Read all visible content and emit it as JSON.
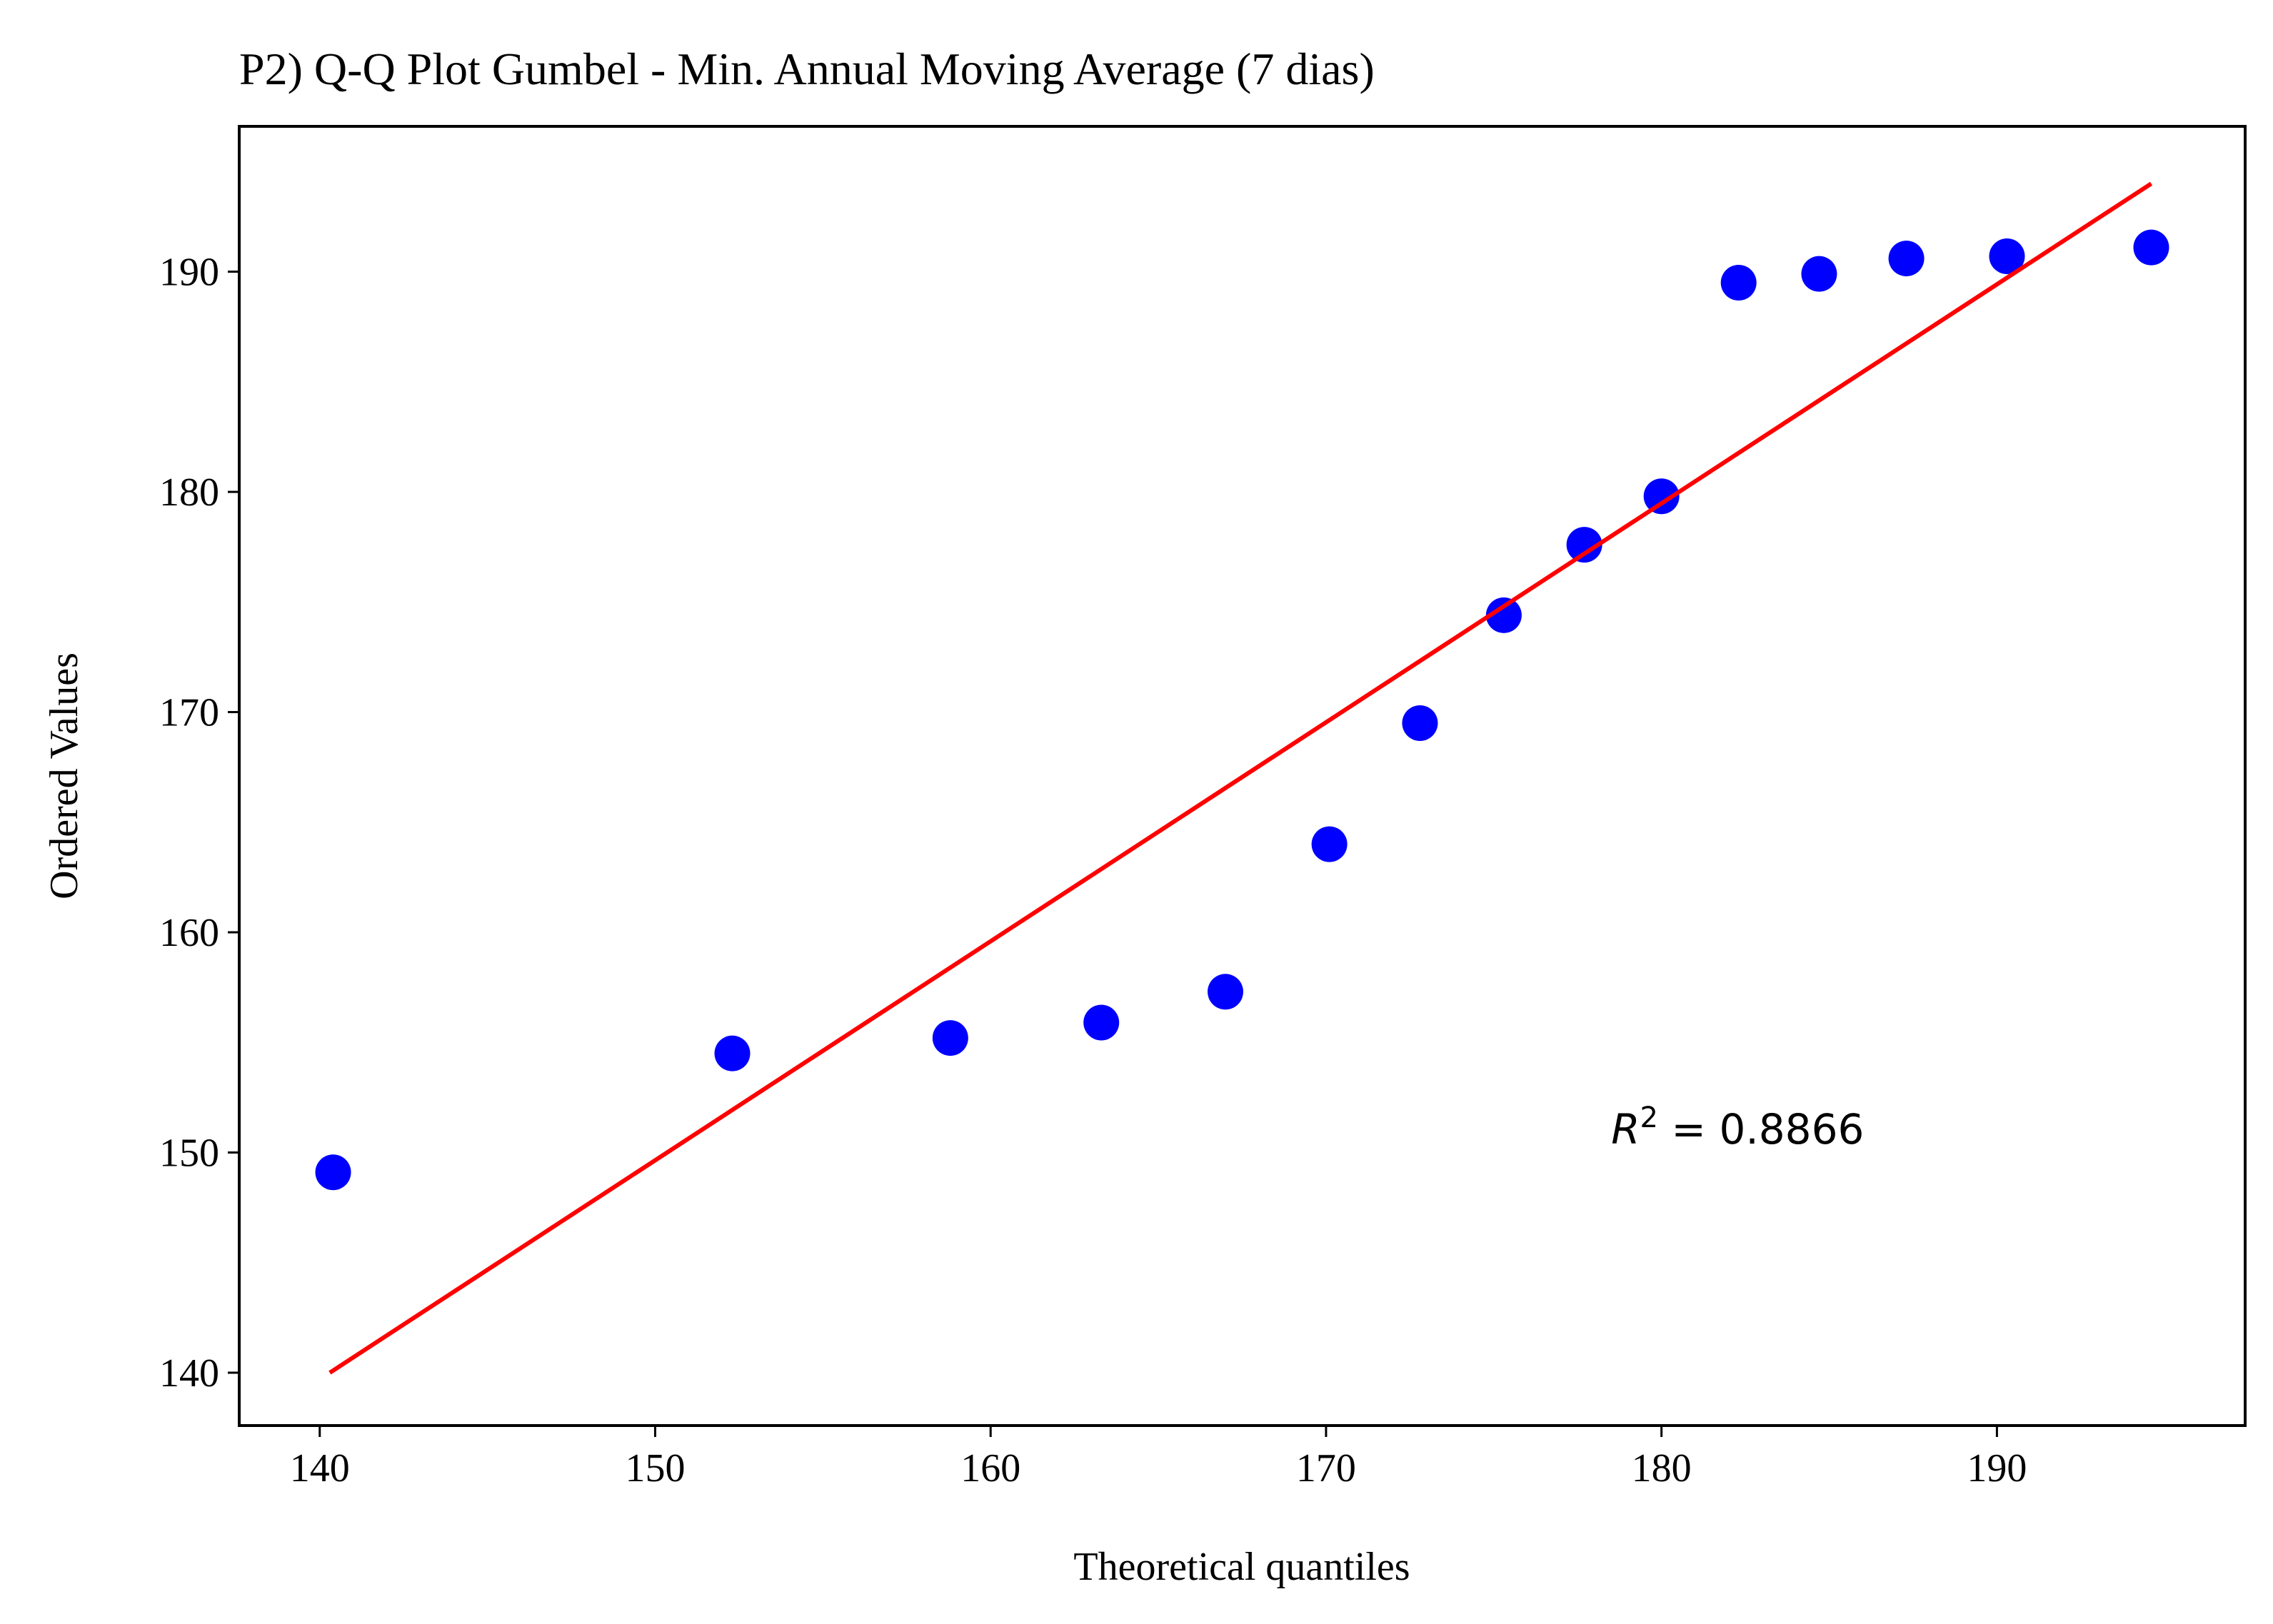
{
  "chart_data": {
    "type": "scatter",
    "title": "P2) Q-Q Plot Gumbel - Min. Annual Moving Average (7 dias)",
    "xlabel": "Theoretical quantiles",
    "ylabel": "Ordered Values",
    "xlim": [
      137.6,
      197.4
    ],
    "ylim": [
      137.6,
      196.6
    ],
    "xticks": [
      140,
      150,
      160,
      170,
      180,
      190
    ],
    "yticks": [
      140,
      150,
      160,
      170,
      180,
      190
    ],
    "grid": false,
    "series": [
      {
        "kind": "scatter",
        "color": "#0000ff",
        "points": [
          {
            "x": 140.4,
            "y": 149.1
          },
          {
            "x": 152.3,
            "y": 154.5
          },
          {
            "x": 158.8,
            "y": 155.2
          },
          {
            "x": 163.3,
            "y": 155.9
          },
          {
            "x": 167.0,
            "y": 157.3
          },
          {
            "x": 170.1,
            "y": 164.0
          },
          {
            "x": 172.8,
            "y": 169.5
          },
          {
            "x": 175.3,
            "y": 174.4
          },
          {
            "x": 177.7,
            "y": 177.6
          },
          {
            "x": 180.0,
            "y": 179.8
          },
          {
            "x": 182.3,
            "y": 189.5
          },
          {
            "x": 184.7,
            "y": 189.9
          },
          {
            "x": 187.3,
            "y": 190.6
          },
          {
            "x": 190.3,
            "y": 190.7
          },
          {
            "x": 194.6,
            "y": 191.1
          }
        ]
      },
      {
        "kind": "line",
        "color": "#ff0000",
        "points": [
          {
            "x": 140.3,
            "y": 140.0
          },
          {
            "x": 194.6,
            "y": 194.0
          }
        ]
      }
    ],
    "annotation": {
      "text_r": "R",
      "text_sup": "2",
      "text_value": " = 0.8866",
      "x": 178.5,
      "y": 150.4
    }
  }
}
